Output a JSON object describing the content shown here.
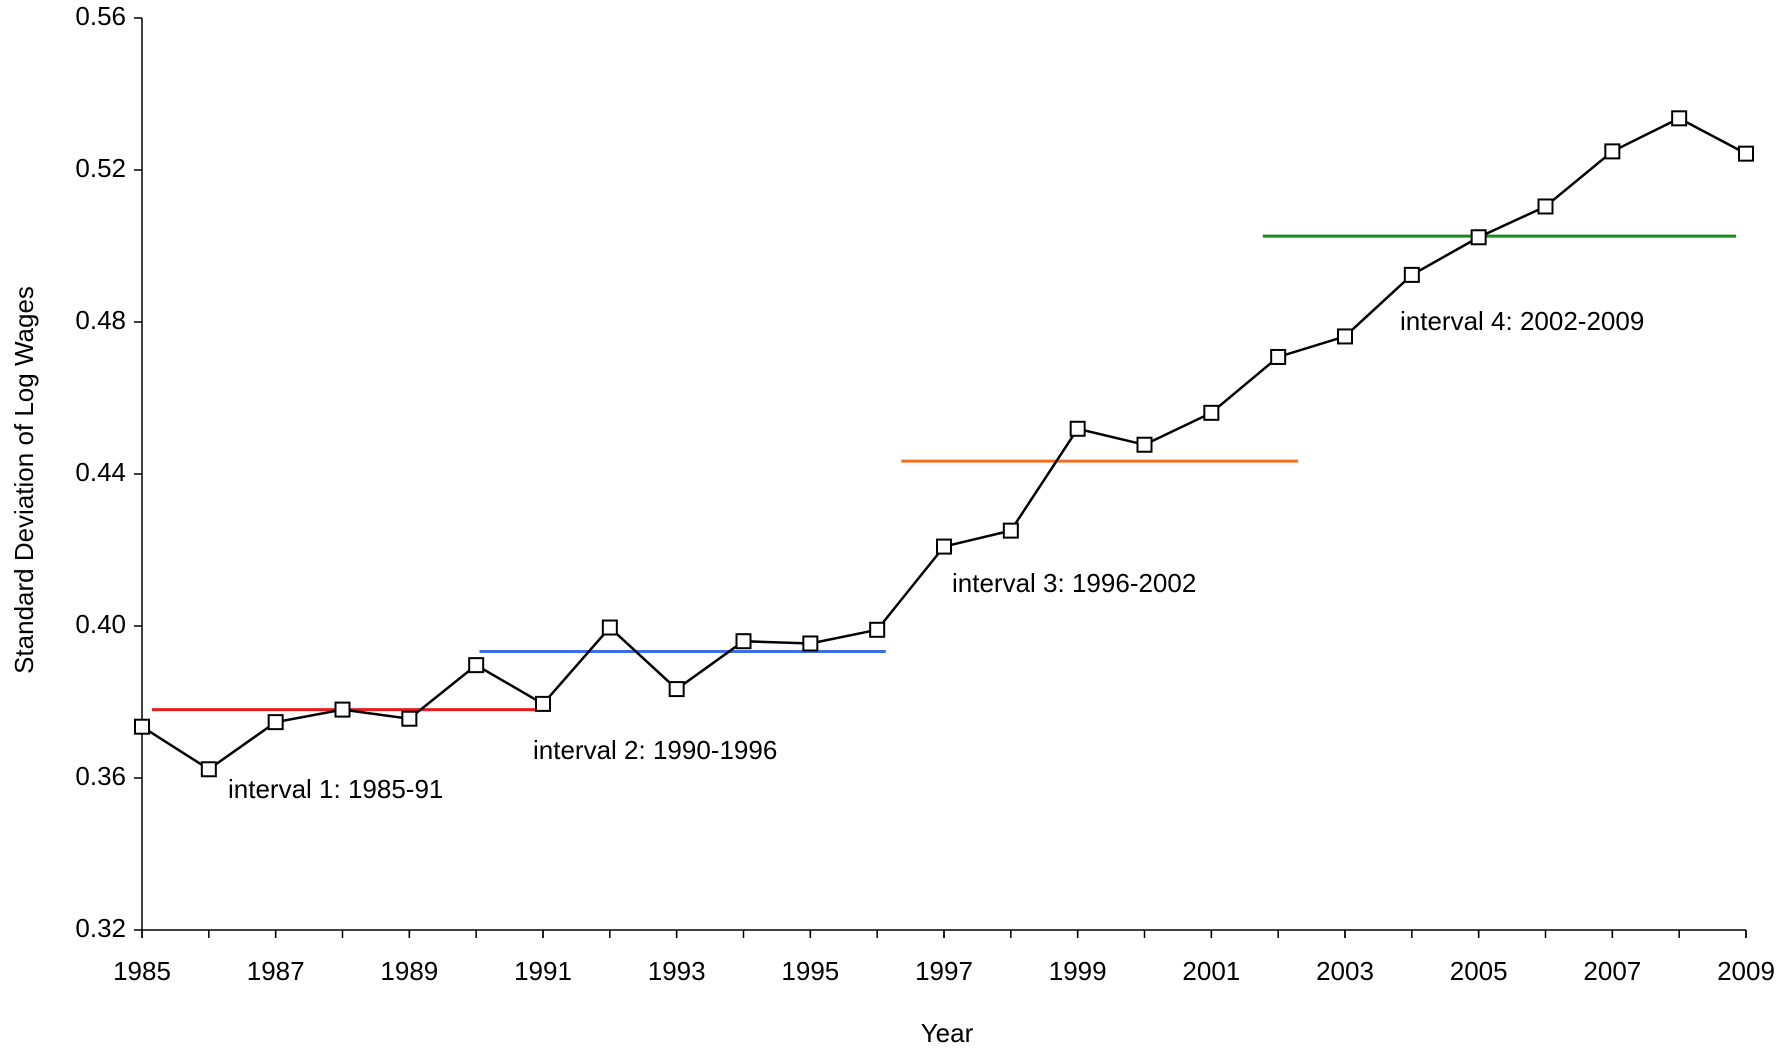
{
  "chart_data": {
    "type": "line",
    "x_label": "Year",
    "y_label": "Standard Deviation of Log Wages",
    "x": [
      1985,
      1986,
      1987,
      1988,
      1989,
      1990,
      1991,
      1992,
      1993,
      1994,
      1995,
      1996,
      1997,
      1998,
      1999,
      2000,
      2001,
      2002,
      2003,
      2004,
      2005,
      2006,
      2007,
      2008,
      2009
    ],
    "series": [
      {
        "color": "#000000",
        "marker": "square",
        "values": [
          0.3735,
          0.3623,
          0.3747,
          0.378,
          0.3756,
          0.3897,
          0.3795,
          0.3996,
          0.3834,
          0.396,
          0.3954,
          0.399,
          0.4209,
          0.4251,
          0.4519,
          0.4477,
          0.4561,
          0.4708,
          0.4762,
          0.4924,
          0.5023,
          0.5104,
          0.5249,
          0.5336,
          0.5243
        ]
      }
    ],
    "reference_lines": [
      {
        "color": "#e81c1c",
        "y": 0.378,
        "x": [
          1985.15,
          1990.9
        ]
      },
      {
        "color": "#3c6ee6",
        "y": 0.3933,
        "x": [
          1990.05,
          1996.13
        ]
      },
      {
        "color": "#f07020",
        "y": 0.4434,
        "x": [
          1996.36,
          2002.3
        ]
      },
      {
        "color": "#1a8a1a",
        "y": 0.5026,
        "x": [
          2001.77,
          2008.85
        ]
      }
    ],
    "annotations": [
      "interval 1: 1985-91",
      "interval 2: 1990-1996",
      "interval 3: 1996-2002",
      "interval 4: 2002-2009"
    ],
    "xlim": [
      1985,
      2009
    ],
    "xticks": [
      1985,
      1987,
      1989,
      1991,
      1993,
      1995,
      1997,
      1999,
      2001,
      2003,
      2005,
      2007,
      2009
    ],
    "ylim": [
      0.32,
      0.56
    ],
    "yticks": [
      {
        "value": 0.32,
        "label": "0.32"
      },
      {
        "value": 0.36,
        "label": "0.36"
      },
      {
        "value": 0.4,
        "label": "0.40"
      },
      {
        "value": 0.44,
        "label": "0.44"
      },
      {
        "value": 0.48,
        "label": "0.48"
      },
      {
        "value": 0.52,
        "label": "0.52"
      },
      {
        "value": 0.56,
        "label": "0.56"
      }
    ],
    "grid": false
  }
}
